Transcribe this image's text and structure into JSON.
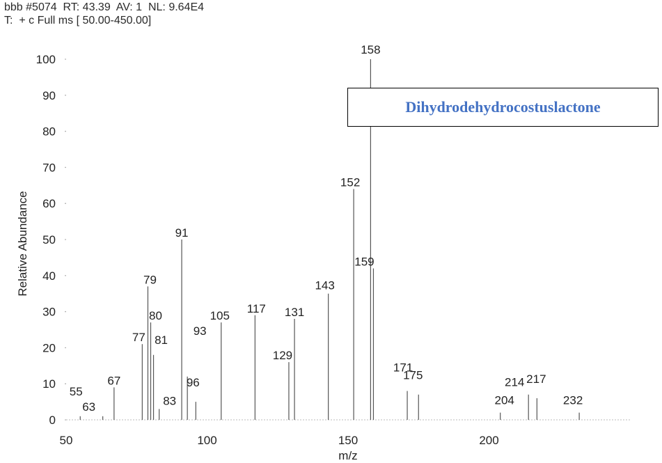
{
  "header": {
    "line1": "bbb #5074  RT: 43.39  AV: 1  NL: 9.64E4",
    "line2": "T:  + c Full ms [ 50.00-450.00]"
  },
  "colors": {
    "legend_text": "#4472c4",
    "peaks": "#555555",
    "axis_text": "#222222"
  },
  "chart_data": {
    "type": "bar",
    "title": "",
    "xlabel": "m/z",
    "ylabel": "Relative Abundance",
    "legend": [
      "Dihydrodehydrocostuslactone"
    ],
    "legend_placement": "top-right",
    "xlim": [
      50,
      252
    ],
    "ylim": [
      0,
      100
    ],
    "x_ticks": [
      50,
      100,
      150,
      200
    ],
    "y_ticks": [
      0,
      10,
      20,
      30,
      40,
      50,
      60,
      70,
      80,
      90,
      100
    ],
    "grid": false,
    "peaks": [
      {
        "mz": 55,
        "intensity": 1,
        "label": "55"
      },
      {
        "mz": 63,
        "intensity": 1,
        "label": "63"
      },
      {
        "mz": 67,
        "intensity": 9,
        "label": "67"
      },
      {
        "mz": 77,
        "intensity": 21,
        "label": "77"
      },
      {
        "mz": 79,
        "intensity": 37,
        "label": "79"
      },
      {
        "mz": 80,
        "intensity": 27,
        "label": "80"
      },
      {
        "mz": 81,
        "intensity": 18,
        "label": "81"
      },
      {
        "mz": 83,
        "intensity": 3,
        "label": "83"
      },
      {
        "mz": 91,
        "intensity": 50,
        "label": "91"
      },
      {
        "mz": 93,
        "intensity": 12,
        "label": "93"
      },
      {
        "mz": 96,
        "intensity": 5,
        "label": "96"
      },
      {
        "mz": 105,
        "intensity": 27,
        "label": "105"
      },
      {
        "mz": 117,
        "intensity": 29,
        "label": "117"
      },
      {
        "mz": 129,
        "intensity": 16,
        "label": "129"
      },
      {
        "mz": 131,
        "intensity": 28,
        "label": "131"
      },
      {
        "mz": 143,
        "intensity": 35,
        "label": "143"
      },
      {
        "mz": 152,
        "intensity": 64,
        "label": "152"
      },
      {
        "mz": 158,
        "intensity": 100,
        "label": "158"
      },
      {
        "mz": 159,
        "intensity": 42,
        "label": "159"
      },
      {
        "mz": 171,
        "intensity": 8,
        "label": "171"
      },
      {
        "mz": 175,
        "intensity": 7,
        "label": "175"
      },
      {
        "mz": 204,
        "intensity": 2,
        "label": "204"
      },
      {
        "mz": 214,
        "intensity": 7,
        "label": "214"
      },
      {
        "mz": 217,
        "intensity": 6,
        "label": "217"
      },
      {
        "mz": 232,
        "intensity": 2,
        "label": "232"
      }
    ]
  }
}
